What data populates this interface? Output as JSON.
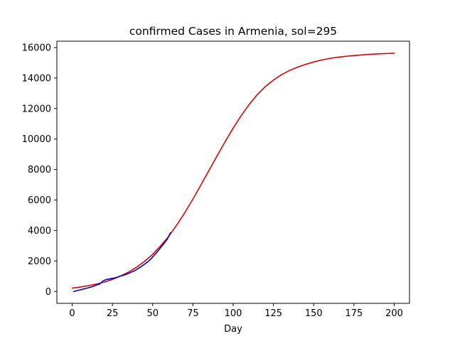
{
  "chart_data": {
    "type": "line",
    "title": "confirmed Cases in Armenia, sol=295",
    "xlabel": "Day",
    "ylabel": "",
    "xlim": [
      -9.5,
      209.5
    ],
    "ylim": [
      -780,
      16420
    ],
    "xticks": [
      0,
      25,
      50,
      75,
      100,
      125,
      150,
      175,
      200
    ],
    "yticks": [
      0,
      2000,
      4000,
      6000,
      8000,
      10000,
      12000,
      14000,
      16000
    ],
    "grid": false,
    "legend": "none",
    "series": [
      {
        "color": "#dd0000",
        "x": [
          0,
          5,
          10,
          15,
          20,
          25,
          30,
          35,
          40,
          45,
          50,
          55,
          60,
          65,
          70,
          75,
          80,
          85,
          90,
          95,
          100,
          105,
          110,
          115,
          120,
          125,
          130,
          135,
          140,
          145,
          150,
          155,
          160,
          165,
          170,
          175,
          180,
          185,
          190,
          195,
          200
        ],
        "y": [
          220,
          290,
          380,
          480,
          620,
          790,
          1010,
          1270,
          1590,
          1980,
          2440,
          3000,
          3620,
          4370,
          5180,
          6060,
          7000,
          7950,
          8900,
          9830,
          10720,
          11540,
          12280,
          12920,
          13450,
          13870,
          14220,
          14500,
          14720,
          14900,
          15060,
          15190,
          15290,
          15370,
          15430,
          15480,
          15520,
          15560,
          15590,
          15610,
          15630
        ]
      },
      {
        "color": "#0000cc",
        "x": [
          1,
          3,
          5,
          7,
          9,
          11,
          13,
          15,
          17,
          19,
          21,
          23,
          25,
          27,
          29,
          31,
          33,
          35,
          37,
          39,
          41,
          43,
          45,
          47,
          49,
          51,
          53,
          55,
          57,
          59,
          61
        ],
        "y": [
          0,
          60,
          100,
          160,
          210,
          270,
          330,
          420,
          480,
          680,
          780,
          820,
          860,
          900,
          980,
          1040,
          1100,
          1180,
          1280,
          1370,
          1500,
          1640,
          1790,
          1950,
          2140,
          2380,
          2620,
          2880,
          3140,
          3420,
          3850
        ]
      }
    ]
  }
}
